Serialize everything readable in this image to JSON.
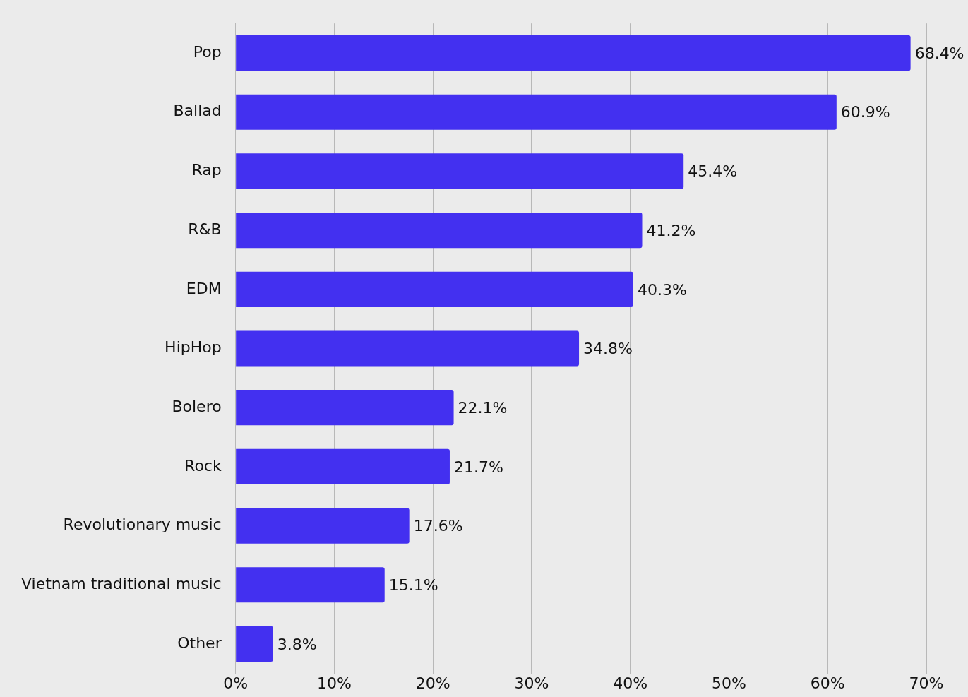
{
  "chart_data": {
    "type": "bar",
    "orientation": "horizontal",
    "categories": [
      "Pop",
      "Ballad",
      "Rap",
      "R&B",
      "EDM",
      "HipHop",
      "Bolero",
      "Rock",
      "Revolutionary music",
      "Vietnam traditional music",
      "Other"
    ],
    "values": [
      68.4,
      60.9,
      45.4,
      41.2,
      40.3,
      34.8,
      22.1,
      21.7,
      17.6,
      15.1,
      3.8
    ],
    "value_labels": [
      "68.4%",
      "60.9%",
      "45.4%",
      "41.2%",
      "40.3%",
      "34.8%",
      "22.1%",
      "21.7%",
      "17.6%",
      "15.1%",
      "3.8%"
    ],
    "color": "#4330f0",
    "xlim": [
      0,
      70
    ],
    "xticks": [
      {
        "value": 0,
        "label": "0%"
      },
      {
        "value": 10,
        "label": "10%"
      },
      {
        "value": 20,
        "label": "20%"
      },
      {
        "value": 30,
        "label": "30%"
      },
      {
        "value": 40,
        "label": "40%"
      },
      {
        "value": 50,
        "label": "50%"
      },
      {
        "value": 60,
        "label": "60%"
      },
      {
        "value": 70,
        "label": "70%"
      }
    ],
    "grid": "x",
    "legend": false
  }
}
